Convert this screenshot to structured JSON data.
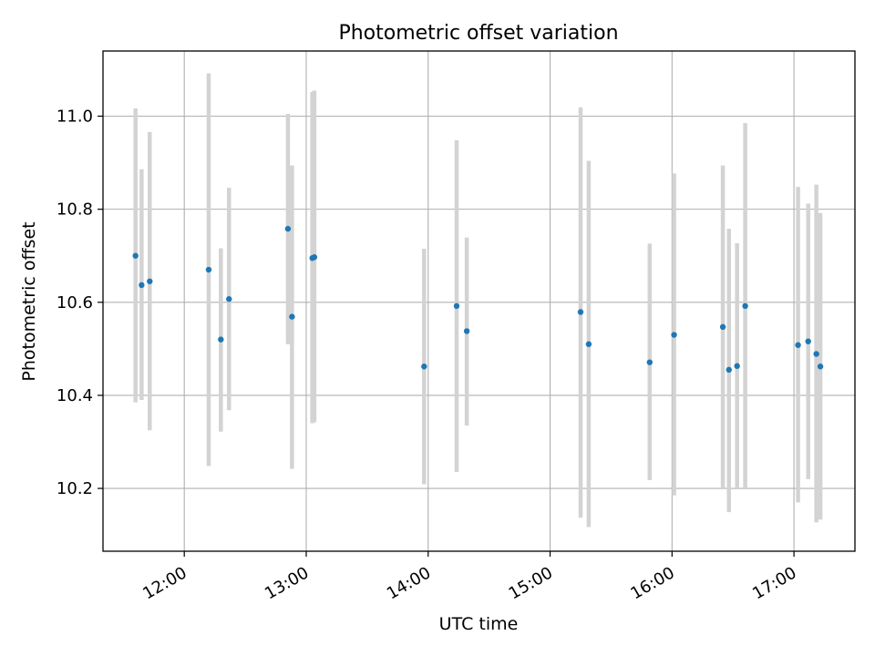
{
  "chart_data": {
    "type": "scatter",
    "title": "Photometric offset variation",
    "xlabel": "UTC time",
    "ylabel": "Photometric offset",
    "grid": true,
    "xlim": [
      "11:20",
      "17:30"
    ],
    "ylim": [
      10.065,
      11.14
    ],
    "x_ticks": [
      "12:00",
      "13:00",
      "14:00",
      "15:00",
      "16:00",
      "17:00"
    ],
    "y_ticks": [
      "10.2",
      "10.4",
      "10.6",
      "10.8",
      "11.0"
    ],
    "colors": {
      "marker": "#1f77b4",
      "errorbar": "#d3d3d3",
      "grid": "#b0b0b0"
    },
    "series": [
      {
        "points": [
          {
            "x": "11:36",
            "y": 10.7,
            "ylow": 10.385,
            "yhigh": 11.017
          },
          {
            "x": "11:39",
            "y": 10.637,
            "ylow": 10.39,
            "yhigh": 10.886
          },
          {
            "x": "11:43",
            "y": 10.645,
            "ylow": 10.325,
            "yhigh": 10.966
          },
          {
            "x": "12:12",
            "y": 10.67,
            "ylow": 10.248,
            "yhigh": 11.092
          },
          {
            "x": "12:18",
            "y": 10.52,
            "ylow": 10.322,
            "yhigh": 10.716
          },
          {
            "x": "12:22",
            "y": 10.607,
            "ylow": 10.368,
            "yhigh": 10.846
          },
          {
            "x": "12:51",
            "y": 10.758,
            "ylow": 10.51,
            "yhigh": 11.005
          },
          {
            "x": "12:53",
            "y": 10.569,
            "ylow": 10.242,
            "yhigh": 10.894
          },
          {
            "x": "13:03",
            "y": 10.695,
            "ylow": 10.34,
            "yhigh": 11.052
          },
          {
            "x": "13:04",
            "y": 10.697,
            "ylow": 10.342,
            "yhigh": 11.055
          },
          {
            "x": "13:58",
            "y": 10.462,
            "ylow": 10.209,
            "yhigh": 10.715
          },
          {
            "x": "14:14",
            "y": 10.592,
            "ylow": 10.235,
            "yhigh": 10.948
          },
          {
            "x": "14:19",
            "y": 10.538,
            "ylow": 10.335,
            "yhigh": 10.739
          },
          {
            "x": "15:15",
            "y": 10.579,
            "ylow": 10.137,
            "yhigh": 11.019
          },
          {
            "x": "15:19",
            "y": 10.51,
            "ylow": 10.117,
            "yhigh": 10.904
          },
          {
            "x": "15:49",
            "y": 10.471,
            "ylow": 10.218,
            "yhigh": 10.726
          },
          {
            "x": "16:01",
            "y": 10.53,
            "ylow": 10.185,
            "yhigh": 10.877
          },
          {
            "x": "16:25",
            "y": 10.547,
            "ylow": 10.2,
            "yhigh": 10.894
          },
          {
            "x": "16:28",
            "y": 10.455,
            "ylow": 10.149,
            "yhigh": 10.758
          },
          {
            "x": "16:32",
            "y": 10.463,
            "ylow": 10.2,
            "yhigh": 10.727
          },
          {
            "x": "16:36",
            "y": 10.592,
            "ylow": 10.2,
            "yhigh": 10.985
          },
          {
            "x": "17:02",
            "y": 10.508,
            "ylow": 10.17,
            "yhigh": 10.848
          },
          {
            "x": "17:07",
            "y": 10.516,
            "ylow": 10.22,
            "yhigh": 10.812
          },
          {
            "x": "17:11",
            "y": 10.489,
            "ylow": 10.127,
            "yhigh": 10.853
          },
          {
            "x": "17:13",
            "y": 10.462,
            "ylow": 10.133,
            "yhigh": 10.792
          }
        ]
      }
    ]
  }
}
